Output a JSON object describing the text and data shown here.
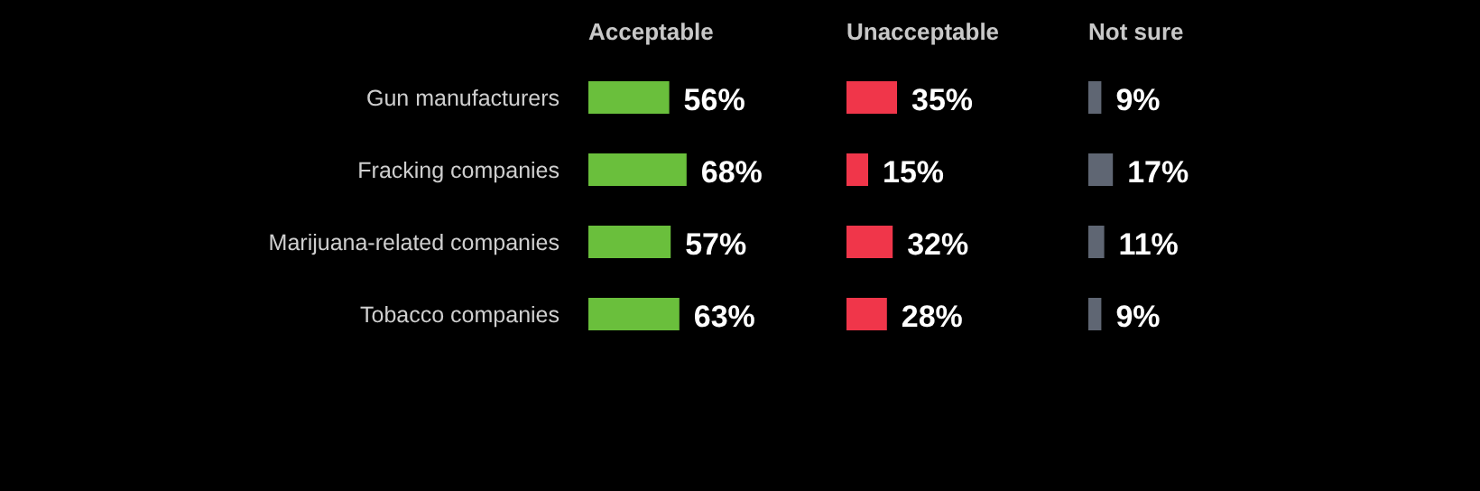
{
  "chart_data": [
    {
      "type": "bar",
      "orientation": "horizontal",
      "title": "Acceptable",
      "categories": [
        "Gun manufacturers",
        "Fracking companies",
        "Marijuana-related companies",
        "Tobacco companies"
      ],
      "values": [
        56,
        68,
        57,
        63
      ],
      "value_labels": [
        "56%",
        "68%",
        "57%",
        "63%"
      ],
      "color": "#6abf3c"
    },
    {
      "type": "bar",
      "orientation": "horizontal",
      "title": "Unacceptable",
      "values": [
        35,
        15,
        32,
        28
      ],
      "value_labels": [
        "35%",
        "15%",
        "32%",
        "28%"
      ],
      "color": "#f0364a"
    },
    {
      "type": "bar",
      "orientation": "horizontal",
      "title": "Not sure",
      "values": [
        9,
        17,
        11,
        9
      ],
      "value_labels": [
        "9%",
        "17%",
        "11%",
        "9%"
      ],
      "color": "#5f6673"
    }
  ]
}
